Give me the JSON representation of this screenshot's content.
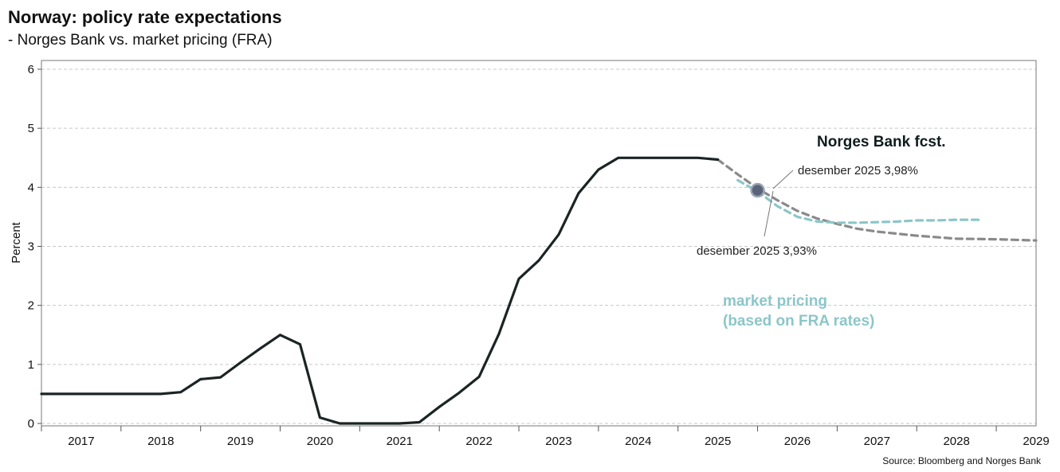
{
  "title": "Norway: policy rate expectations",
  "subtitle": "- Norges Bank vs. market pricing (FRA)",
  "source": "Source: Bloomberg and Norges Bank",
  "annotations": {
    "nb_fcst_label": "Norges Bank fcst.",
    "market_label_line1": "market pricing",
    "market_label_line2": "(based on FRA rates)",
    "nb_point_label": "desember 2025 3,98%",
    "market_point_label": "desember 2025 3,93%"
  },
  "colors": {
    "policy_rate": "#1b2424",
    "nb_forecast": "#8a8a8a",
    "market_pricing": "#8cc6c9",
    "marker": "#5a6478",
    "grid": "#c8c8c8"
  },
  "chart_data": {
    "type": "line",
    "title": "Norway: policy rate expectations",
    "subtitle": "- Norges Bank vs. market pricing (FRA)",
    "ylabel": "Percent",
    "xlabel": "",
    "ylim": [
      0,
      6
    ],
    "xlim": [
      2016.5,
      2029
    ],
    "yticks": [
      "0",
      "1",
      "2",
      "3",
      "4",
      "5",
      "6"
    ],
    "xticks": [
      "2017",
      "2018",
      "2019",
      "2020",
      "2021",
      "2022",
      "2023",
      "2024",
      "2025",
      "2026",
      "2027",
      "2028",
      "2029"
    ],
    "grid": true,
    "series": [
      {
        "name": "",
        "style": "solid",
        "x": [
          2016.5,
          2018.0,
          2018.25,
          2018.5,
          2018.75,
          2019.0,
          2019.25,
          2019.5,
          2019.75,
          2020.0,
          2020.25,
          2020.5,
          2020.75,
          2021.0,
          2021.25,
          2021.5,
          2021.75,
          2022.0,
          2022.25,
          2022.5,
          2022.75,
          2023.0,
          2023.25,
          2023.5,
          2023.75,
          2024.0,
          2024.25,
          2024.5,
          2024.75,
          2025.0
        ],
        "y": [
          0.5,
          0.5,
          0.53,
          0.75,
          0.78,
          1.03,
          1.27,
          1.5,
          1.34,
          0.1,
          0.0,
          0.0,
          0.0,
          0.0,
          0.02,
          0.28,
          0.52,
          0.79,
          1.52,
          2.45,
          2.76,
          3.2,
          3.9,
          4.3,
          4.5,
          4.5,
          4.5,
          4.5,
          4.5,
          4.47
        ]
      },
      {
        "name": "Norges Bank fcst.",
        "style": "dashed",
        "x": [
          2025.0,
          2025.25,
          2025.5,
          2025.75,
          2026.0,
          2026.25,
          2026.5,
          2026.75,
          2027.0,
          2027.5,
          2028.0,
          2028.5,
          2029.0
        ],
        "y": [
          4.47,
          4.22,
          3.98,
          3.78,
          3.6,
          3.47,
          3.38,
          3.3,
          3.25,
          3.18,
          3.13,
          3.12,
          3.1
        ]
      },
      {
        "name": "market pricing (based on FRA rates)",
        "style": "dashed",
        "x": [
          2025.25,
          2025.5,
          2025.75,
          2026.0,
          2026.25,
          2026.5,
          2026.75,
          2027.0,
          2027.25,
          2027.5,
          2027.75,
          2028.0,
          2028.3
        ],
        "y": [
          4.12,
          3.93,
          3.68,
          3.5,
          3.42,
          3.4,
          3.4,
          3.41,
          3.42,
          3.44,
          3.44,
          3.45,
          3.45
        ]
      }
    ],
    "highlight": {
      "x": 2025.5,
      "y": 3.95
    }
  }
}
